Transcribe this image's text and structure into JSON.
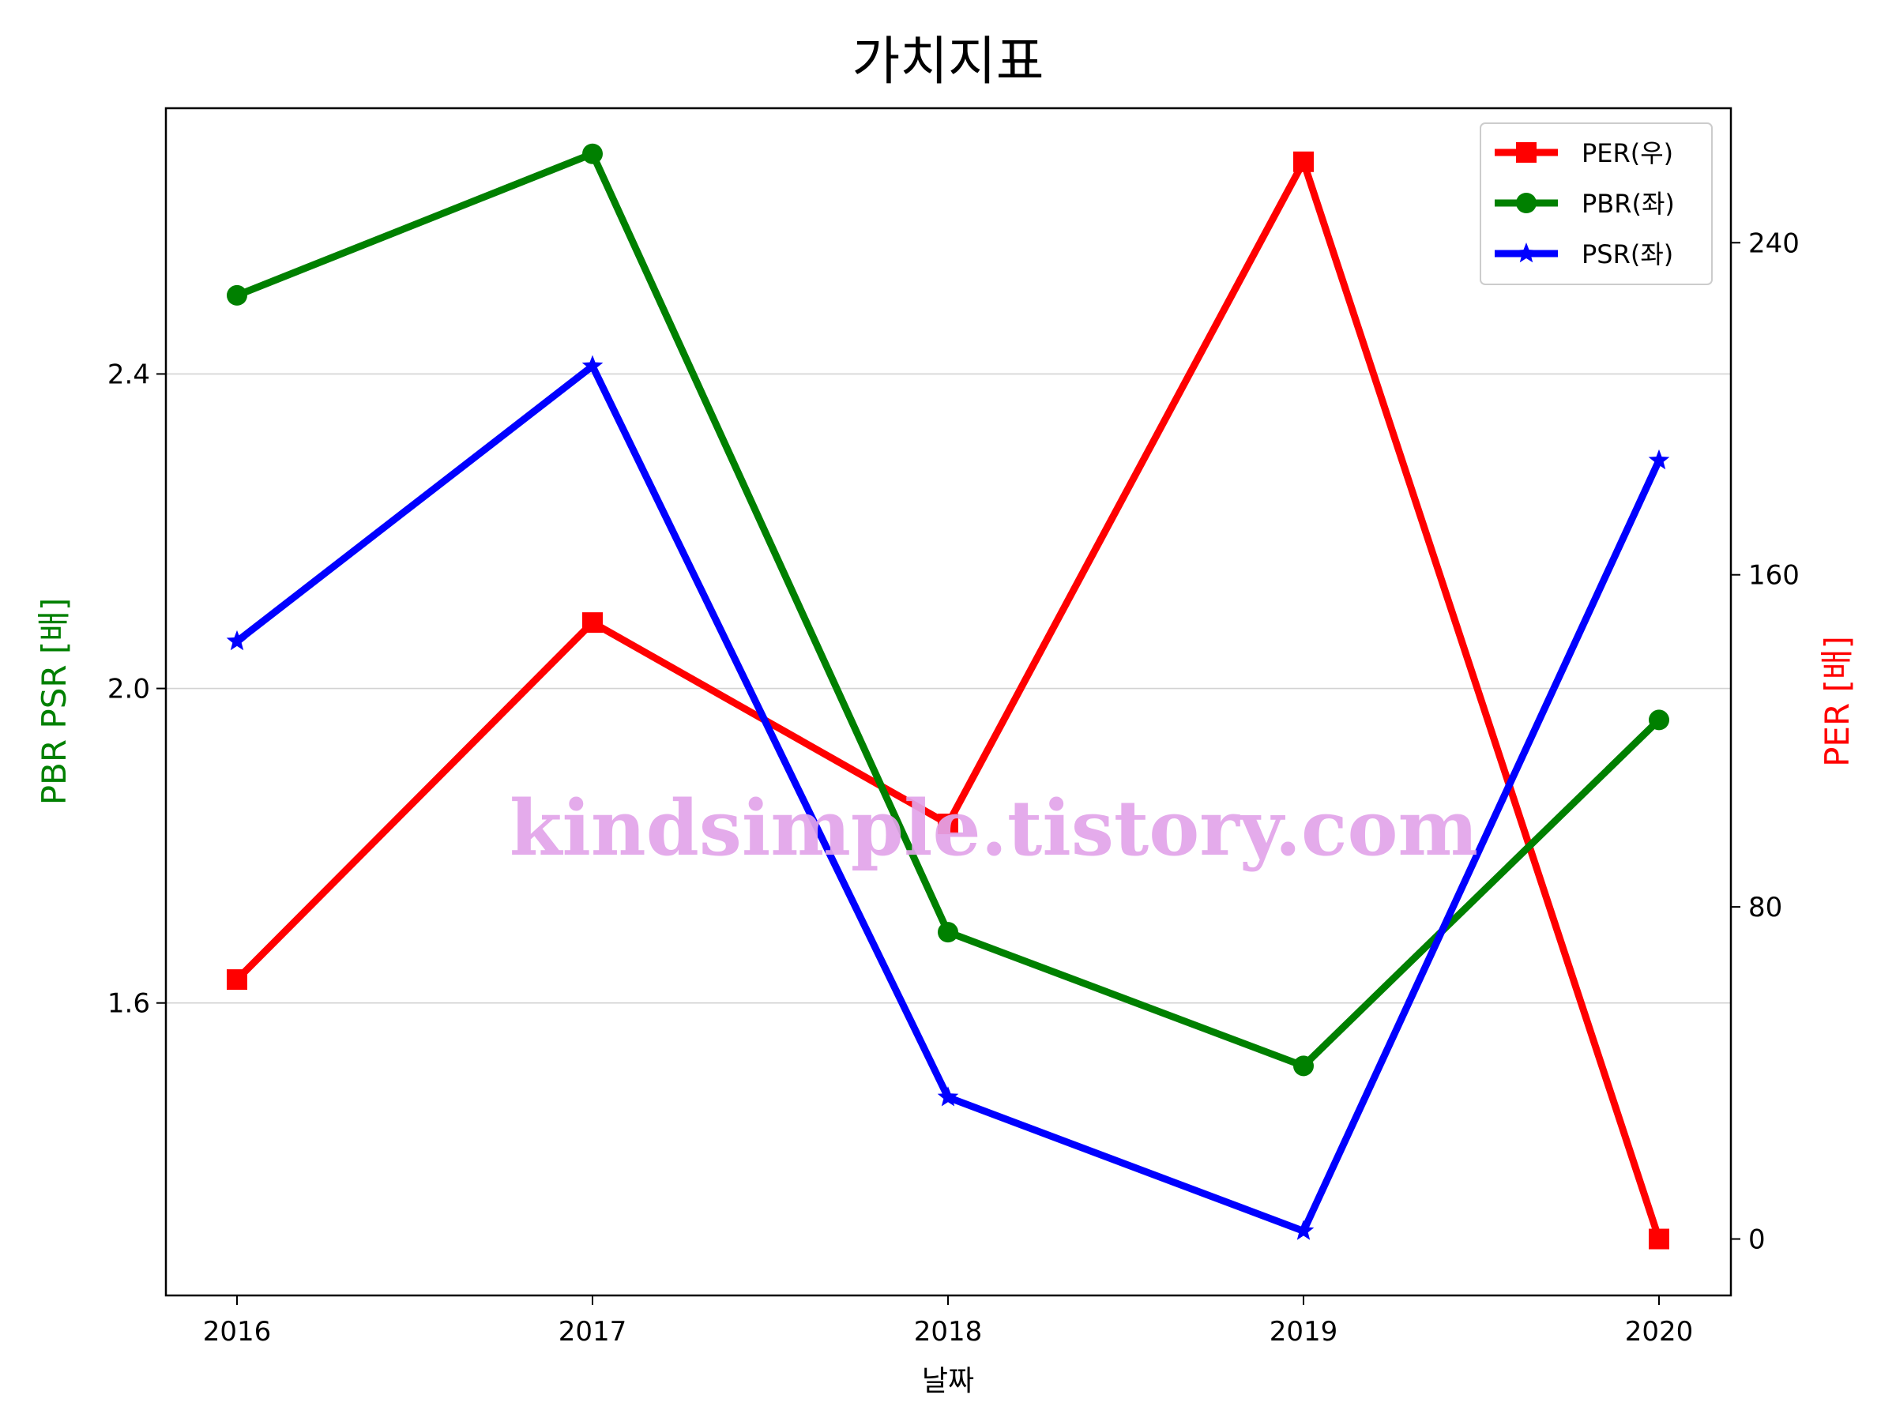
{
  "chart_data": {
    "type": "line",
    "title": "가치지표",
    "xlabel": "날짜",
    "ylabel_left": "PBR PSR [배]",
    "ylabel_right": "PER [배]",
    "categories": [
      "2016",
      "2017",
      "2018",
      "2019",
      "2020"
    ],
    "left_axis": {
      "ylim": [
        1.228,
        2.738
      ],
      "ticks": [
        1.6,
        2.0,
        2.4
      ],
      "tick_labels": [
        "1.6",
        "2.0",
        "2.4"
      ],
      "grid": true
    },
    "right_axis": {
      "ylim": [
        -13.6,
        272.4
      ],
      "ticks": [
        0,
        80,
        160,
        240
      ],
      "tick_labels": [
        "0",
        "80",
        "160",
        "240"
      ]
    },
    "series": [
      {
        "name": "PER(우)",
        "axis": "right",
        "marker": "square",
        "color": "#ff0000",
        "values": [
          62.5,
          148.5,
          100.0,
          259.5,
          0.0
        ]
      },
      {
        "name": "PBR(좌)",
        "axis": "left",
        "marker": "circle",
        "color": "#008000",
        "values": [
          2.5,
          2.68,
          1.69,
          1.52,
          1.96
        ]
      },
      {
        "name": "PSR(좌)",
        "axis": "left",
        "marker": "star",
        "color": "#0000ff",
        "values": [
          2.06,
          2.41,
          1.48,
          1.31,
          2.29
        ]
      }
    ],
    "legend_position": "top-right",
    "watermark": "kindsimple.tistory.com",
    "label_colors": {
      "left": "#008000",
      "right": "#ff0000"
    }
  }
}
